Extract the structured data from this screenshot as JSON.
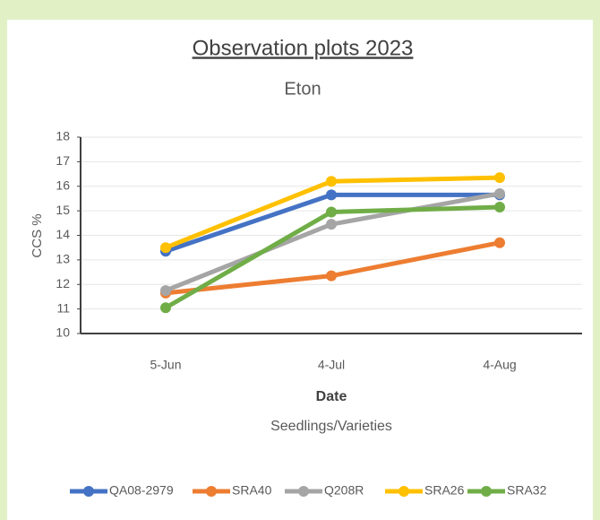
{
  "chart_data": {
    "type": "line",
    "title": "Observation plots 2023",
    "subtitle": "Eton",
    "y_label": "CCS %",
    "x_label": "Date",
    "x_sublabel": "Seedlings/Varieties",
    "categories": [
      "5-Jun",
      "4-Jul",
      "4-Aug"
    ],
    "series": [
      {
        "name": "QA08-2979",
        "color": "#4472c4",
        "values": [
          13.35,
          15.65,
          15.65
        ]
      },
      {
        "name": "SRA40",
        "color": "#ed7d31",
        "values": [
          11.65,
          12.35,
          13.7
        ]
      },
      {
        "name": "Q208R",
        "color": "#a5a5a5",
        "values": [
          11.75,
          14.45,
          15.7
        ]
      },
      {
        "name": "SRA26",
        "color": "#ffc000",
        "values": [
          13.5,
          16.2,
          16.35
        ]
      },
      {
        "name": "SRA32",
        "color": "#70ad47",
        "values": [
          11.05,
          14.95,
          15.15
        ]
      }
    ],
    "ylim": [
      10,
      18
    ],
    "yticks": [
      10,
      11,
      12,
      13,
      14,
      15,
      16,
      17,
      18
    ],
    "grid": true,
    "legend": "bottom"
  }
}
